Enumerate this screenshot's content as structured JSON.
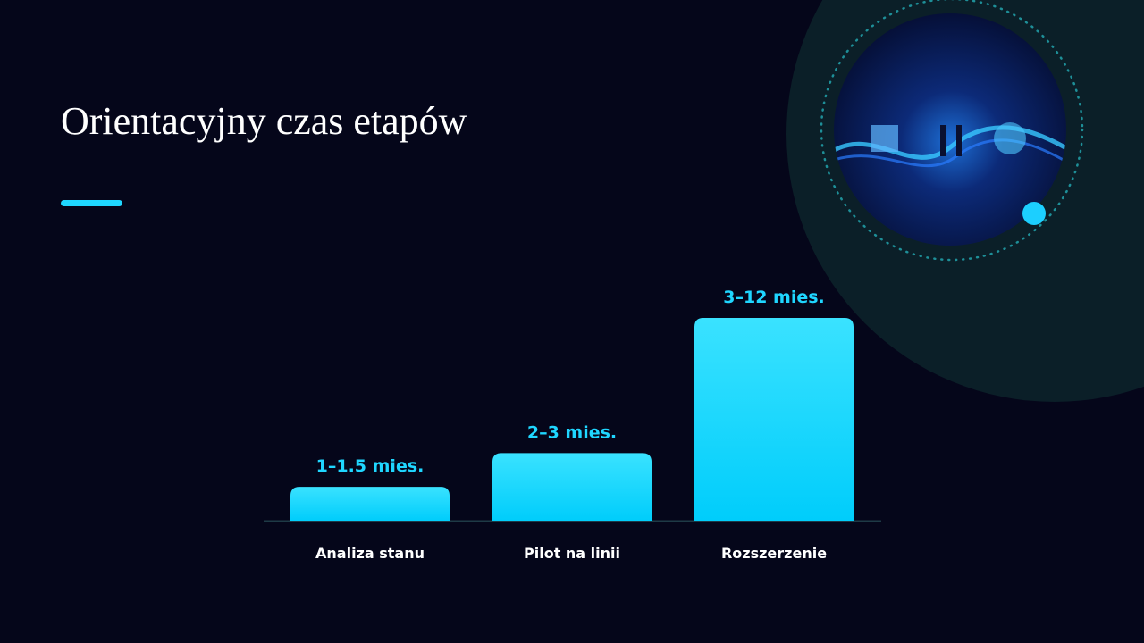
{
  "chart_data": {
    "type": "bar",
    "title": "Orientacyjny czas etapów",
    "categories": [
      "Analiza stanu",
      "Pilot na linii",
      "Rozszerzenie"
    ],
    "values": [
      1.25,
      2.5,
      7.5
    ],
    "value_labels": [
      "1–1.5 mies.",
      "2–3 mies.",
      "3–12 mies."
    ],
    "color": "#1fd6ff"
  }
}
